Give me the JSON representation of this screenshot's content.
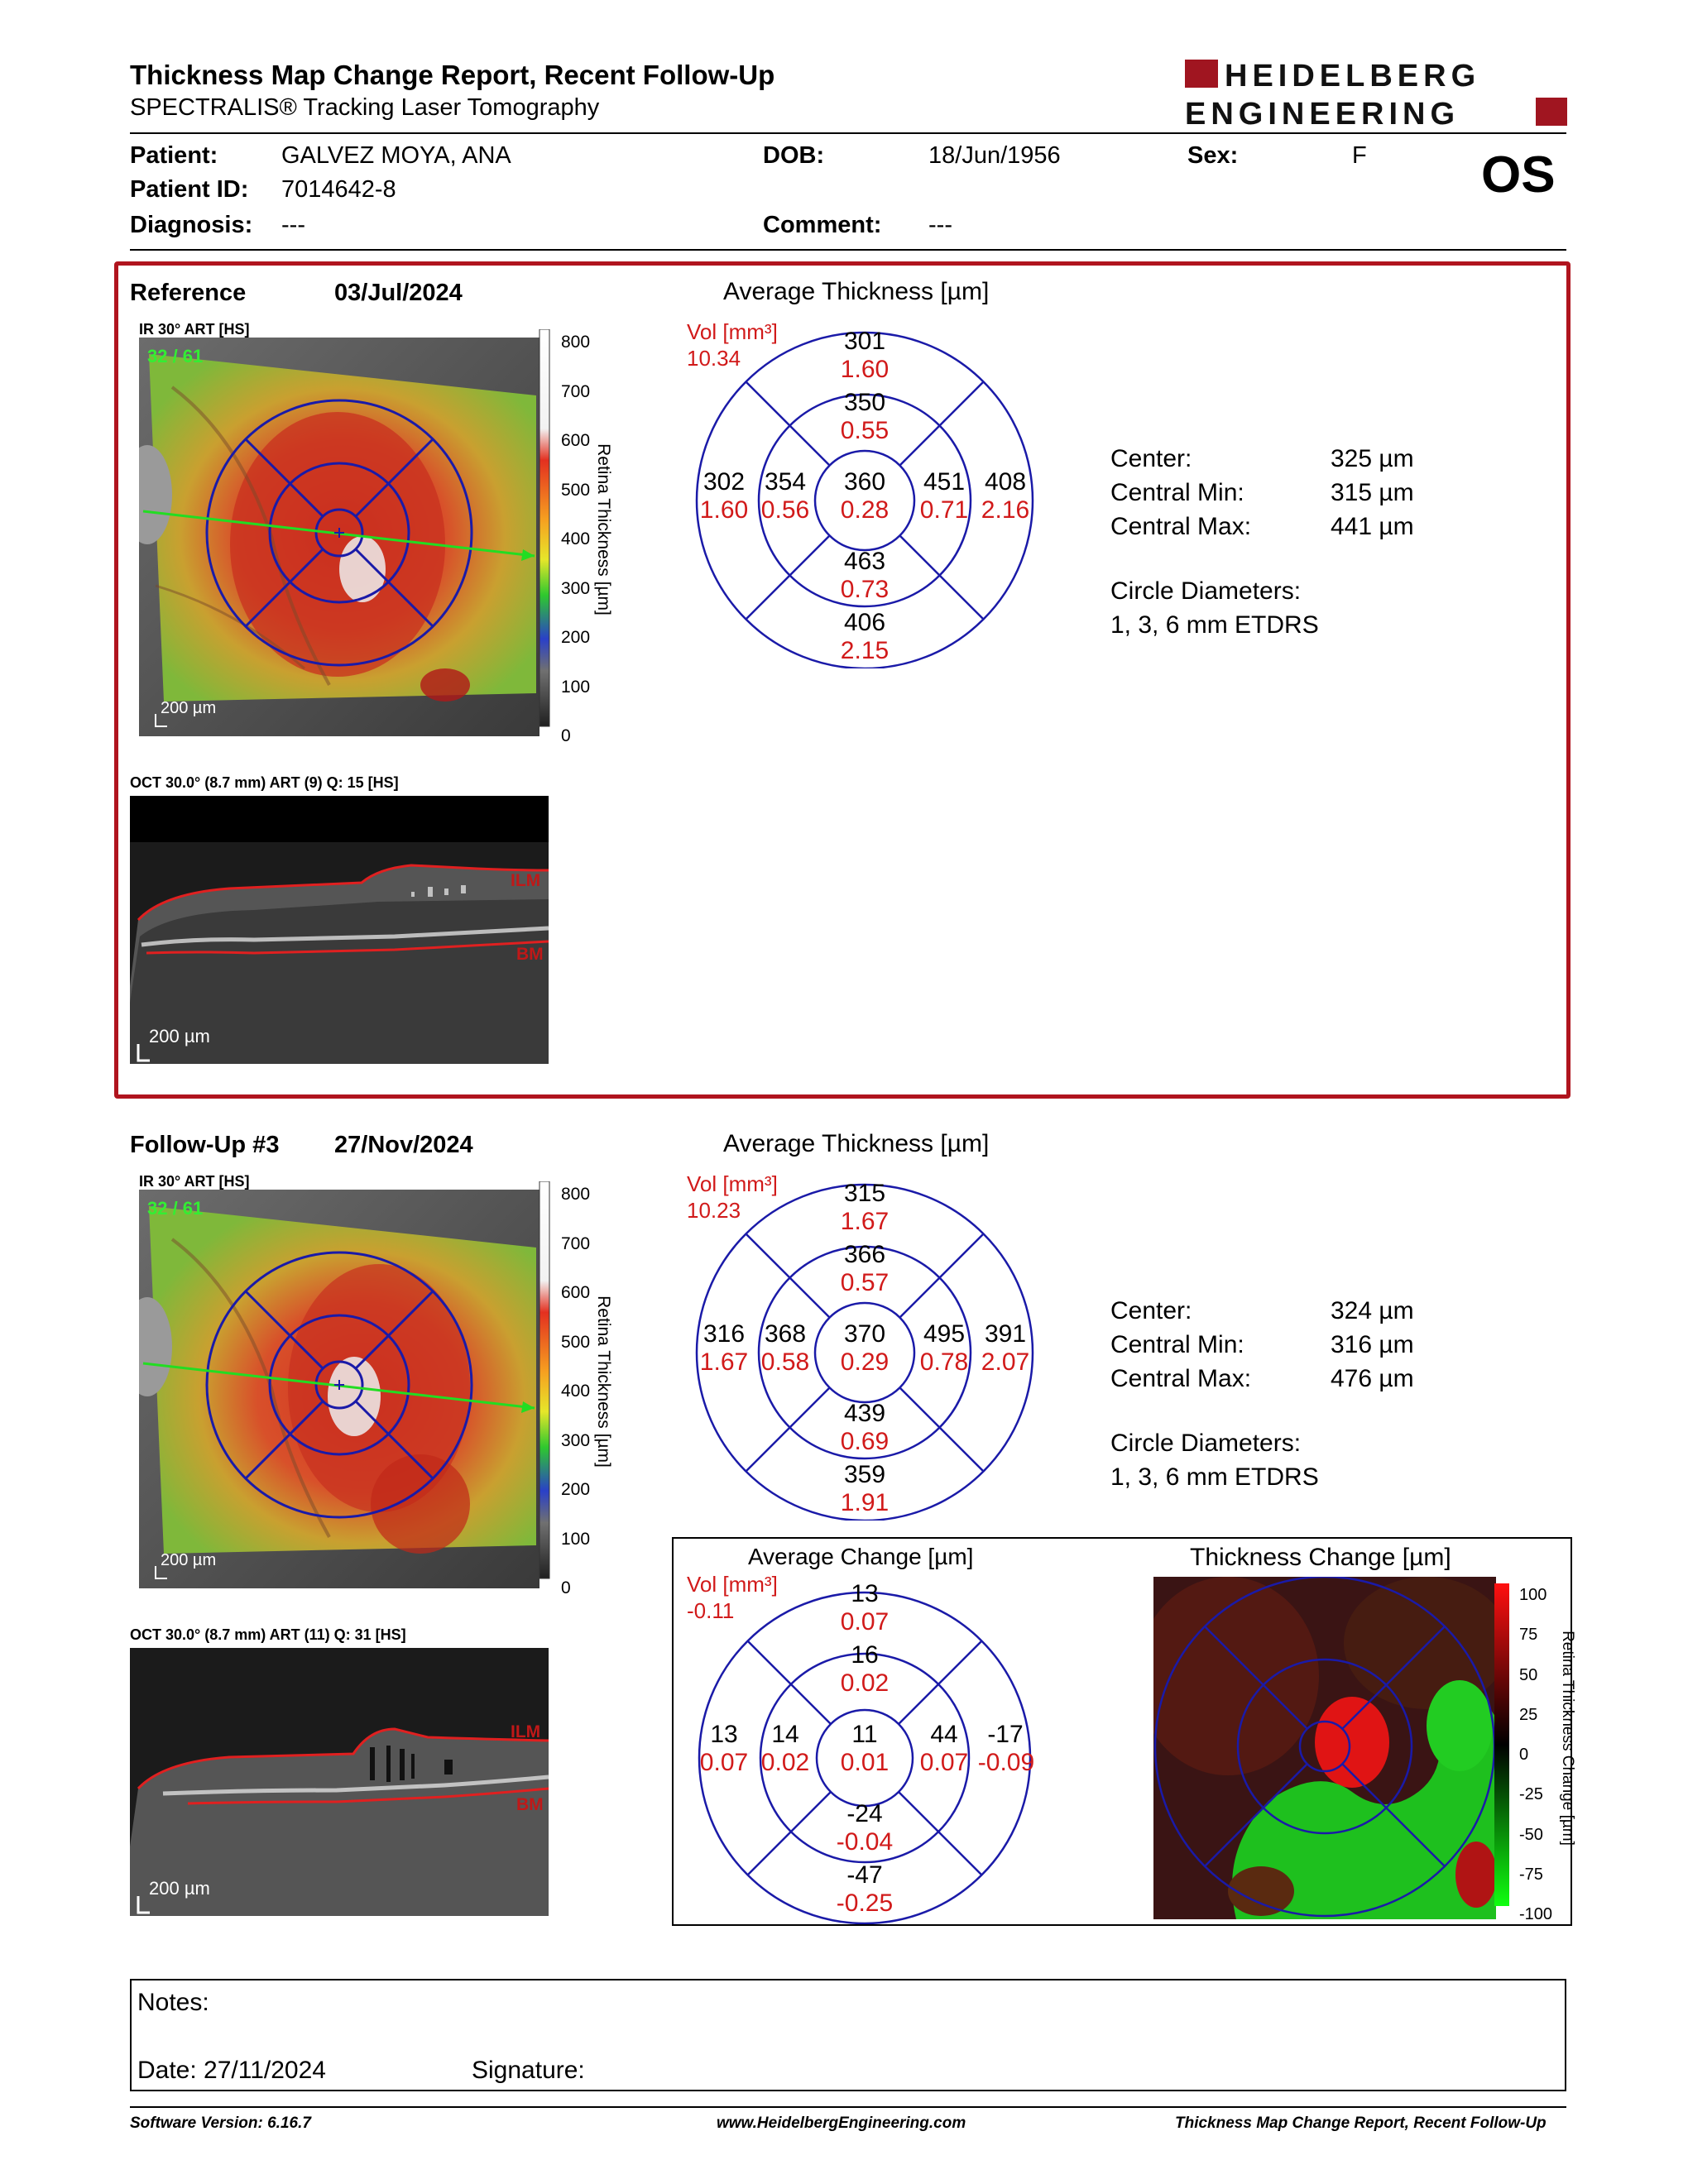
{
  "header": {
    "title": "Thickness Map Change Report, Recent Follow-Up",
    "subtitle": "SPECTRALIS® Tracking Laser Tomography",
    "logo_line1": "HEIDELBERG",
    "logo_line2": "ENGINEERING",
    "eye": "OS"
  },
  "patient": {
    "name_label": "Patient:",
    "name": "GALVEZ MOYA, ANA",
    "dob_label": "DOB:",
    "dob": "18/Jun/1956",
    "sex_label": "Sex:",
    "sex": "F",
    "id_label": "Patient ID:",
    "id": "7014642-8",
    "diagnosis_label": "Diagnosis:",
    "diagnosis": "---",
    "comment_label": "Comment:",
    "comment": "---"
  },
  "reference": {
    "label": "Reference",
    "date": "03/Jul/2024",
    "ir_label": "IR 30° ART [HS]",
    "ir_counter": "32 / 61",
    "ir_scale": "200 µm",
    "oct_label": "OCT 30.0° (8.7 mm) ART (9) Q: 15 [HS]",
    "oct_scale": "200 µm",
    "ilm": "ILM",
    "bm": "BM",
    "avg_title": "Average Thickness [µm]",
    "vol_label": "Vol [mm³]",
    "vol": "10.34",
    "sectors": {
      "outer_sup": [
        "301",
        "1.60"
      ],
      "inner_sup": [
        "350",
        "0.55"
      ],
      "outer_temp": [
        "302",
        "1.60"
      ],
      "inner_temp": [
        "354",
        "0.56"
      ],
      "center": [
        "360",
        "0.28"
      ],
      "inner_nas": [
        "451",
        "0.71"
      ],
      "outer_nas": [
        "408",
        "2.16"
      ],
      "inner_inf": [
        "463",
        "0.73"
      ],
      "outer_inf": [
        "406",
        "2.15"
      ]
    },
    "stats": [
      {
        "label": "Center:",
        "value": "325 µm"
      },
      {
        "label": "Central Min:",
        "value": "315 µm"
      },
      {
        "label": "Central Max:",
        "value": "441 µm"
      }
    ],
    "circle_label": "Circle Diameters:",
    "circle_value": "1, 3, 6 mm ETDRS"
  },
  "followup": {
    "label": "Follow-Up #3",
    "date": "27/Nov/2024",
    "ir_label": "IR 30° ART [HS]",
    "ir_counter": "32 / 61",
    "ir_scale": "200 µm",
    "oct_label": "OCT 30.0° (8.7 mm) ART (11) Q: 31 [HS]",
    "oct_scale": "200 µm",
    "ilm": "ILM",
    "bm": "BM",
    "avg_title": "Average Thickness [µm]",
    "vol_label": "Vol [mm³]",
    "vol": "10.23",
    "sectors": {
      "outer_sup": [
        "315",
        "1.67"
      ],
      "inner_sup": [
        "366",
        "0.57"
      ],
      "outer_temp": [
        "316",
        "1.67"
      ],
      "inner_temp": [
        "368",
        "0.58"
      ],
      "center": [
        "370",
        "0.29"
      ],
      "inner_nas": [
        "495",
        "0.78"
      ],
      "outer_nas": [
        "391",
        "2.07"
      ],
      "inner_inf": [
        "439",
        "0.69"
      ],
      "outer_inf": [
        "359",
        "1.91"
      ]
    },
    "stats": [
      {
        "label": "Center:",
        "value": "324 µm"
      },
      {
        "label": "Central Min:",
        "value": "316 µm"
      },
      {
        "label": "Central Max:",
        "value": "476 µm"
      }
    ],
    "circle_label": "Circle Diameters:",
    "circle_value": "1, 3, 6 mm ETDRS"
  },
  "change": {
    "avg_title": "Average Change [µm]",
    "vol_label": "Vol [mm³]",
    "vol": "-0.11",
    "sectors": {
      "outer_sup": [
        "13",
        "0.07"
      ],
      "inner_sup": [
        "16",
        "0.02"
      ],
      "outer_temp": [
        "13",
        "0.07"
      ],
      "inner_temp": [
        "14",
        "0.02"
      ],
      "center": [
        "11",
        "0.01"
      ],
      "inner_nas": [
        "44",
        "0.07"
      ],
      "outer_nas": [
        "-17",
        "-0.09"
      ],
      "inner_inf": [
        "-24",
        "-0.04"
      ],
      "outer_inf": [
        "-47",
        "-0.25"
      ]
    },
    "map_title": "Thickness Change [µm]",
    "scale_ticks": [
      "100",
      "75",
      "50",
      "25",
      "0",
      "-25",
      "-50",
      "-75",
      "-100"
    ],
    "scale_label": "Retina Thickness Change [µm]"
  },
  "thickness_scale": {
    "ticks": [
      "800",
      "700",
      "600",
      "500",
      "400",
      "300",
      "200",
      "100",
      "0"
    ],
    "label": "Retina Thickness [µm]"
  },
  "notes": {
    "notes_label": "Notes:",
    "date_label": "Date: 27/11/2024",
    "signature_label": "Signature:"
  },
  "footer": {
    "software": "Software Version: 6.16.7",
    "url": "www.HeidelbergEngineering.com",
    "report": "Thickness Map Change Report, Recent Follow-Up"
  },
  "colors": {
    "frame_red": "#b0141e",
    "value_red": "#d11a1a",
    "grid_blue": "#1a1aa8",
    "scan_line": "#22dd22"
  }
}
